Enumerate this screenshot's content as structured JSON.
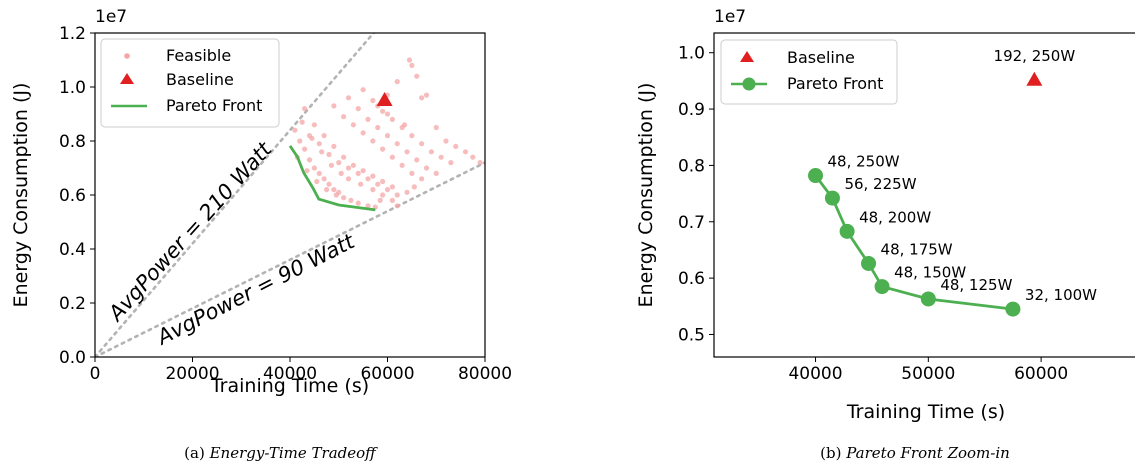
{
  "chart_data": [
    {
      "type": "scatter",
      "caption_prefix": "(a)",
      "caption_title": "Energy-Time Tradeoff",
      "xlabel": "Training Time (s)",
      "ylabel": "Energy Consumption (J)",
      "y_multiplier_label": "1e7",
      "xlim": [
        0,
        80000
      ],
      "ylim": [
        0,
        1.2
      ],
      "xticks": [
        "0",
        "20000",
        "40000",
        "60000",
        "80000"
      ],
      "yticks": [
        "0.0",
        "0.2",
        "0.4",
        "0.6",
        "0.8",
        "1.0",
        "1.2"
      ],
      "legend": {
        "position": "upper-left",
        "entries": [
          "Feasible",
          "Baseline",
          "Pareto Front"
        ]
      },
      "reference_lines": [
        {
          "label": "AvgPower = 210 Watt",
          "slope_per_s": 210
        },
        {
          "label": "AvgPower = 90 Watt",
          "slope_per_s": 90
        }
      ],
      "series": [
        {
          "name": "Feasible",
          "kind": "scatter",
          "color": "#f4a6a6",
          "points": [
            [
              41000,
              0.84
            ],
            [
              42000,
              0.8
            ],
            [
              43000,
              0.77
            ],
            [
              44000,
              0.73
            ],
            [
              45000,
              0.7
            ],
            [
              46000,
              0.68
            ],
            [
              47000,
              0.66
            ],
            [
              48000,
              0.64
            ],
            [
              49000,
              0.62
            ],
            [
              50000,
              0.61
            ],
            [
              41500,
              0.74
            ],
            [
              43500,
              0.69
            ],
            [
              45500,
              0.65
            ],
            [
              47500,
              0.62
            ],
            [
              49500,
              0.6
            ],
            [
              51000,
              0.59
            ],
            [
              52500,
              0.58
            ],
            [
              54000,
              0.57
            ],
            [
              56000,
              0.56
            ],
            [
              57500,
              0.555
            ],
            [
              42500,
              0.87
            ],
            [
              44500,
              0.81
            ],
            [
              46500,
              0.76
            ],
            [
              48500,
              0.71
            ],
            [
              50500,
              0.68
            ],
            [
              52000,
              0.66
            ],
            [
              54500,
              0.64
            ],
            [
              57000,
              0.62
            ],
            [
              59000,
              0.6
            ],
            [
              61000,
              0.58
            ],
            [
              43000,
              0.92
            ],
            [
              45000,
              0.86
            ],
            [
              47000,
              0.82
            ],
            [
              49000,
              0.78
            ],
            [
              51000,
              0.74
            ],
            [
              53000,
              0.71
            ],
            [
              55000,
              0.69
            ],
            [
              57000,
              0.67
            ],
            [
              59000,
              0.65
            ],
            [
              61000,
              0.63
            ],
            [
              44000,
              0.82
            ],
            [
              46000,
              0.79
            ],
            [
              48000,
              0.75
            ],
            [
              50000,
              0.72
            ],
            [
              52000,
              0.7
            ],
            [
              54000,
              0.68
            ],
            [
              56000,
              0.66
            ],
            [
              58000,
              0.64
            ],
            [
              60000,
              0.62
            ],
            [
              62000,
              0.6
            ],
            [
              49000,
              0.93
            ],
            [
              51000,
              0.89
            ],
            [
              53000,
              0.86
            ],
            [
              55000,
              0.83
            ],
            [
              57000,
              0.8
            ],
            [
              59000,
              0.77
            ],
            [
              61000,
              0.74
            ],
            [
              63000,
              0.71
            ],
            [
              65000,
              0.68
            ],
            [
              67000,
              0.66
            ],
            [
              52000,
              0.96
            ],
            [
              54000,
              0.92
            ],
            [
              56000,
              0.88
            ],
            [
              58000,
              0.85
            ],
            [
              60000,
              0.82
            ],
            [
              62000,
              0.79
            ],
            [
              64000,
              0.76
            ],
            [
              66000,
              0.73
            ],
            [
              68000,
              0.7
            ],
            [
              70000,
              0.68
            ],
            [
              55000,
              0.99
            ],
            [
              57000,
              0.95
            ],
            [
              59000,
              0.91
            ],
            [
              61000,
              0.88
            ],
            [
              63000,
              0.85
            ],
            [
              65000,
              0.82
            ],
            [
              67000,
              0.79
            ],
            [
              69000,
              0.76
            ],
            [
              71000,
              0.74
            ],
            [
              73000,
              0.72
            ],
            [
              58000,
              0.93
            ],
            [
              60000,
              0.9
            ],
            [
              62000,
              1.02
            ],
            [
              63500,
              0.86
            ],
            [
              64500,
              1.1
            ],
            [
              65000,
              1.08
            ],
            [
              66000,
              1.04
            ],
            [
              67000,
              0.96
            ],
            [
              68000,
              0.97
            ],
            [
              70000,
              0.85
            ],
            [
              72000,
              0.8
            ],
            [
              74000,
              0.78
            ],
            [
              76000,
              0.76
            ],
            [
              77500,
              0.74
            ],
            [
              79000,
              0.72
            ],
            [
              60000,
              0.97
            ],
            [
              64000,
              0.61
            ],
            [
              65500,
              0.63
            ],
            [
              62000,
              0.56
            ],
            [
              58500,
              0.58
            ]
          ]
        },
        {
          "name": "Baseline",
          "kind": "marker",
          "color": "#e02020",
          "points": [
            [
              59400,
              0.952
            ]
          ]
        },
        {
          "name": "Pareto Front",
          "kind": "line",
          "color": "#4caf50",
          "points": [
            [
              40000,
              0.782
            ],
            [
              41500,
              0.742
            ],
            [
              42800,
              0.683
            ],
            [
              44700,
              0.626
            ],
            [
              45900,
              0.585
            ],
            [
              50000,
              0.563
            ],
            [
              57500,
              0.545
            ]
          ]
        }
      ]
    },
    {
      "type": "line",
      "caption_prefix": "(b)",
      "caption_title": "Pareto Front Zoom-in",
      "xlabel": "Training Time (s)",
      "ylabel": "Energy Consumption (J)",
      "y_multiplier_label": "1e7",
      "xlim": [
        31000,
        68500
      ],
      "ylim": [
        0.46,
        1.035
      ],
      "xticks": [
        "40000",
        "50000",
        "60000"
      ],
      "yticks": [
        "0.5",
        "0.6",
        "0.7",
        "0.8",
        "0.9",
        "1.0"
      ],
      "legend": {
        "position": "upper-left",
        "entries": [
          "Baseline",
          "Pareto Front"
        ]
      },
      "series": [
        {
          "name": "Baseline",
          "kind": "marker",
          "color": "#e02020",
          "points": [
            {
              "x": 59400,
              "y": 0.952,
              "label": "192, 250W"
            }
          ]
        },
        {
          "name": "Pareto Front",
          "kind": "line",
          "color": "#4caf50",
          "points": [
            {
              "x": 40000,
              "y": 0.782,
              "label": "48, 250W"
            },
            {
              "x": 41500,
              "y": 0.742,
              "label": "56, 225W"
            },
            {
              "x": 42800,
              "y": 0.683,
              "label": "48, 200W"
            },
            {
              "x": 44700,
              "y": 0.626,
              "label": "48, 175W"
            },
            {
              "x": 45900,
              "y": 0.585,
              "label": "48, 150W"
            },
            {
              "x": 50000,
              "y": 0.563,
              "label": "48, 125W"
            },
            {
              "x": 57500,
              "y": 0.545,
              "label": "32, 100W"
            }
          ]
        }
      ]
    }
  ]
}
